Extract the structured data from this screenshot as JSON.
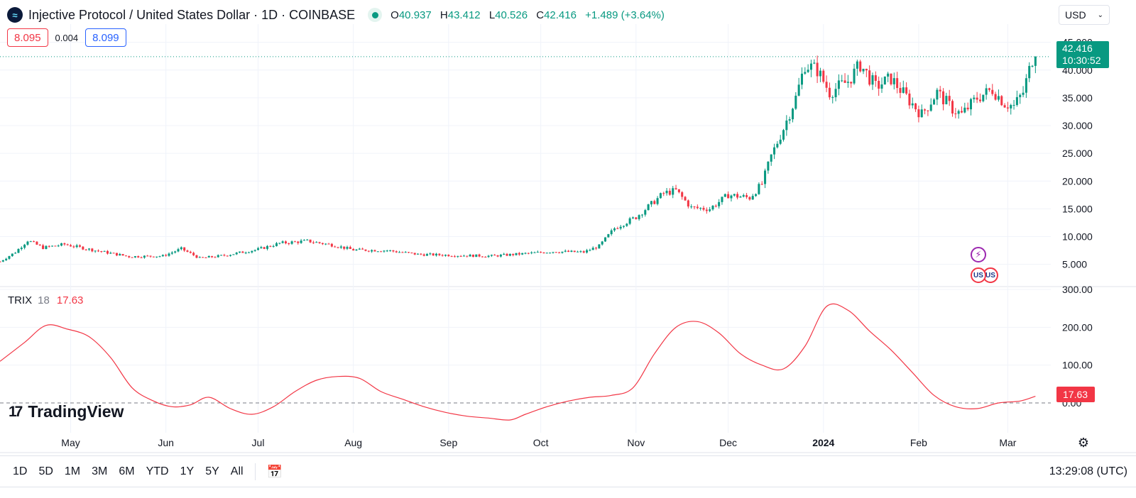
{
  "header": {
    "logo_glyph": "≈",
    "title": "Injective Protocol / United States Dollar · 1D · COINBASE",
    "status_color": "#089981",
    "ohlc": [
      {
        "key": "O",
        "value": "40.937"
      },
      {
        "key": "H",
        "value": "43.412"
      },
      {
        "key": "L",
        "value": "40.526"
      },
      {
        "key": "C",
        "value": "42.416"
      }
    ],
    "change": "+1.489 (+3.64%)"
  },
  "prices": {
    "bid": "8.095",
    "spread": "0.004",
    "ask": "8.099"
  },
  "currency": {
    "selected": "USD"
  },
  "last_price": {
    "price": "42.416",
    "countdown": "10:30:52"
  },
  "indicator": {
    "name": "TRIX",
    "length": "18",
    "value": "17.63"
  },
  "watermark": {
    "text": "TradingView"
  },
  "toolbar": {
    "ranges": [
      "1D",
      "5D",
      "1M",
      "3M",
      "6M",
      "YTD",
      "1Y",
      "5Y",
      "All"
    ],
    "clock": "13:29:08 (UTC)"
  },
  "colors": {
    "up": "#089981",
    "down": "#f23645",
    "trix_line": "#f23645",
    "grid": "#f0f3fa"
  },
  "chart_data": [
    {
      "type": "candlestick",
      "title": "Injective Protocol / United States Dollar · 1D · COINBASE",
      "x_ticks": [
        "May",
        "Jun",
        "Jul",
        "Aug",
        "Sep",
        "Oct",
        "Nov",
        "Dec",
        "2024",
        "Feb",
        "Mar"
      ],
      "x_tick_dates": [
        "2023-05-01",
        "2023-06-01",
        "2023-07-01",
        "2023-08-01",
        "2023-09-01",
        "2023-10-01",
        "2023-11-01",
        "2023-12-01",
        "2024-01-01",
        "2024-02-01",
        "2024-03-01"
      ],
      "x_range": [
        "2023-04-08",
        "2024-03-15"
      ],
      "y_ticks": [
        "5.000",
        "10.000",
        "15.000",
        "20.000",
        "25.000",
        "30.000",
        "35.000",
        "40.000",
        "45.000"
      ],
      "ylim": [
        1.5,
        47
      ],
      "grid": true,
      "close_waypoints": [
        [
          "2023-04-08",
          5.5
        ],
        [
          "2023-04-13",
          7.2
        ],
        [
          "2023-04-17",
          9.3
        ],
        [
          "2023-04-22",
          8.0
        ],
        [
          "2023-04-29",
          8.6
        ],
        [
          "2023-05-08",
          7.6
        ],
        [
          "2023-05-20",
          6.4
        ],
        [
          "2023-05-31",
          6.5
        ],
        [
          "2023-06-06",
          7.8
        ],
        [
          "2023-06-12",
          6.1
        ],
        [
          "2023-06-20",
          6.6
        ],
        [
          "2023-07-01",
          7.7
        ],
        [
          "2023-07-08",
          8.8
        ],
        [
          "2023-07-17",
          9.2
        ],
        [
          "2023-07-25",
          8.5
        ],
        [
          "2023-08-01",
          7.6
        ],
        [
          "2023-08-12",
          7.5
        ],
        [
          "2023-08-22",
          6.8
        ],
        [
          "2023-09-05",
          6.6
        ],
        [
          "2023-09-15",
          6.5
        ],
        [
          "2023-09-25",
          6.9
        ],
        [
          "2023-10-05",
          7.3
        ],
        [
          "2023-10-15",
          7.2
        ],
        [
          "2023-10-20",
          8.3
        ],
        [
          "2023-10-25",
          11.5
        ],
        [
          "2023-11-01",
          13.5
        ],
        [
          "2023-11-05",
          15.4
        ],
        [
          "2023-11-10",
          17.8
        ],
        [
          "2023-11-14",
          18.3
        ],
        [
          "2023-11-19",
          15.2
        ],
        [
          "2023-11-25",
          15.0
        ],
        [
          "2023-12-01",
          17.5
        ],
        [
          "2023-12-08",
          17.0
        ],
        [
          "2023-12-12",
          19.5
        ],
        [
          "2023-12-15",
          24.5
        ],
        [
          "2023-12-19",
          29.5
        ],
        [
          "2023-12-23",
          35.0
        ],
        [
          "2023-12-26",
          41.0
        ],
        [
          "2023-12-30",
          40.0
        ],
        [
          "2024-01-03",
          36.0
        ],
        [
          "2024-01-09",
          38.0
        ],
        [
          "2024-01-13",
          41.0
        ],
        [
          "2024-01-18",
          37.0
        ],
        [
          "2024-01-23",
          38.5
        ],
        [
          "2024-01-29",
          34.5
        ],
        [
          "2024-02-02",
          32.0
        ],
        [
          "2024-02-07",
          36.0
        ],
        [
          "2024-02-12",
          33.0
        ],
        [
          "2024-02-15",
          32.0
        ],
        [
          "2024-02-20",
          35.0
        ],
        [
          "2024-02-25",
          36.5
        ],
        [
          "2024-02-29",
          34.0
        ],
        [
          "2024-03-03",
          33.5
        ],
        [
          "2024-03-06",
          36.0
        ],
        [
          "2024-03-09",
          42.0
        ],
        [
          "2024-03-10",
          42.416
        ]
      ]
    },
    {
      "type": "line",
      "series": [
        {
          "name": "TRIX",
          "points": [
            [
              "2023-04-08",
              110
            ],
            [
              "2023-04-16",
              160
            ],
            [
              "2023-04-23",
              205
            ],
            [
              "2023-04-30",
              195
            ],
            [
              "2023-05-07",
              175
            ],
            [
              "2023-05-14",
              120
            ],
            [
              "2023-05-21",
              40
            ],
            [
              "2023-05-28",
              5
            ],
            [
              "2023-06-03",
              -10
            ],
            [
              "2023-06-09",
              -5
            ],
            [
              "2023-06-15",
              15
            ],
            [
              "2023-06-22",
              -15
            ],
            [
              "2023-06-29",
              -30
            ],
            [
              "2023-07-06",
              -10
            ],
            [
              "2023-07-13",
              30
            ],
            [
              "2023-07-20",
              60
            ],
            [
              "2023-07-27",
              70
            ],
            [
              "2023-08-03",
              65
            ],
            [
              "2023-08-10",
              30
            ],
            [
              "2023-08-17",
              10
            ],
            [
              "2023-08-24",
              -10
            ],
            [
              "2023-08-31",
              -25
            ],
            [
              "2023-09-07",
              -35
            ],
            [
              "2023-09-14",
              -40
            ],
            [
              "2023-09-21",
              -45
            ],
            [
              "2023-09-26",
              -30
            ],
            [
              "2023-10-03",
              -10
            ],
            [
              "2023-10-10",
              5
            ],
            [
              "2023-10-17",
              15
            ],
            [
              "2023-10-24",
              20
            ],
            [
              "2023-10-31",
              40
            ],
            [
              "2023-11-07",
              130
            ],
            [
              "2023-11-14",
              200
            ],
            [
              "2023-11-21",
              215
            ],
            [
              "2023-11-28",
              185
            ],
            [
              "2023-12-05",
              130
            ],
            [
              "2023-12-12",
              100
            ],
            [
              "2023-12-19",
              90
            ],
            [
              "2023-12-26",
              150
            ],
            [
              "2024-01-02",
              255
            ],
            [
              "2024-01-09",
              245
            ],
            [
              "2024-01-16",
              190
            ],
            [
              "2024-01-23",
              140
            ],
            [
              "2024-01-30",
              80
            ],
            [
              "2024-02-06",
              20
            ],
            [
              "2024-02-13",
              -10
            ],
            [
              "2024-02-20",
              -15
            ],
            [
              "2024-02-27",
              0
            ],
            [
              "2024-03-05",
              5
            ],
            [
              "2024-03-10",
              17.63
            ]
          ]
        }
      ],
      "y_ticks": [
        "0.00",
        "100.00",
        "200.00",
        "300.00"
      ],
      "ylim": [
        -60,
        300
      ],
      "zero_line": "dashed"
    }
  ]
}
